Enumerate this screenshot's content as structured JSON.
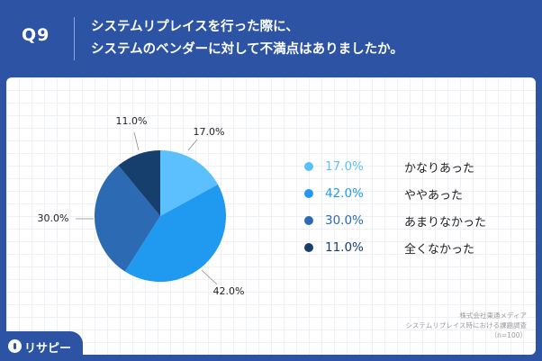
{
  "header": {
    "question_number": "Q9",
    "question": "システムリプレイスを行った際に、\nシステムのベンダーに対して不満点はありましたか。"
  },
  "chart_data": {
    "type": "pie",
    "title": "",
    "slices": [
      {
        "label": "かなりあった",
        "value": 17.0,
        "display": "17.0%",
        "color": "#5cc0ff"
      },
      {
        "label": "ややあった",
        "value": 42.0,
        "display": "42.0%",
        "color": "#1f9af0"
      },
      {
        "label": "あまりなかった",
        "value": 30.0,
        "display": "30.0%",
        "color": "#2c6bb3"
      },
      {
        "label": "全くなかった",
        "value": 11.0,
        "display": "11.0%",
        "color": "#173f6e"
      }
    ],
    "legend_position": "right"
  },
  "source": {
    "line1": "株式会社東通メディア",
    "line2": "システムリプレイス時における課題調査",
    "line3": "（n=100）"
  },
  "logo": {
    "text": "リサピー"
  }
}
